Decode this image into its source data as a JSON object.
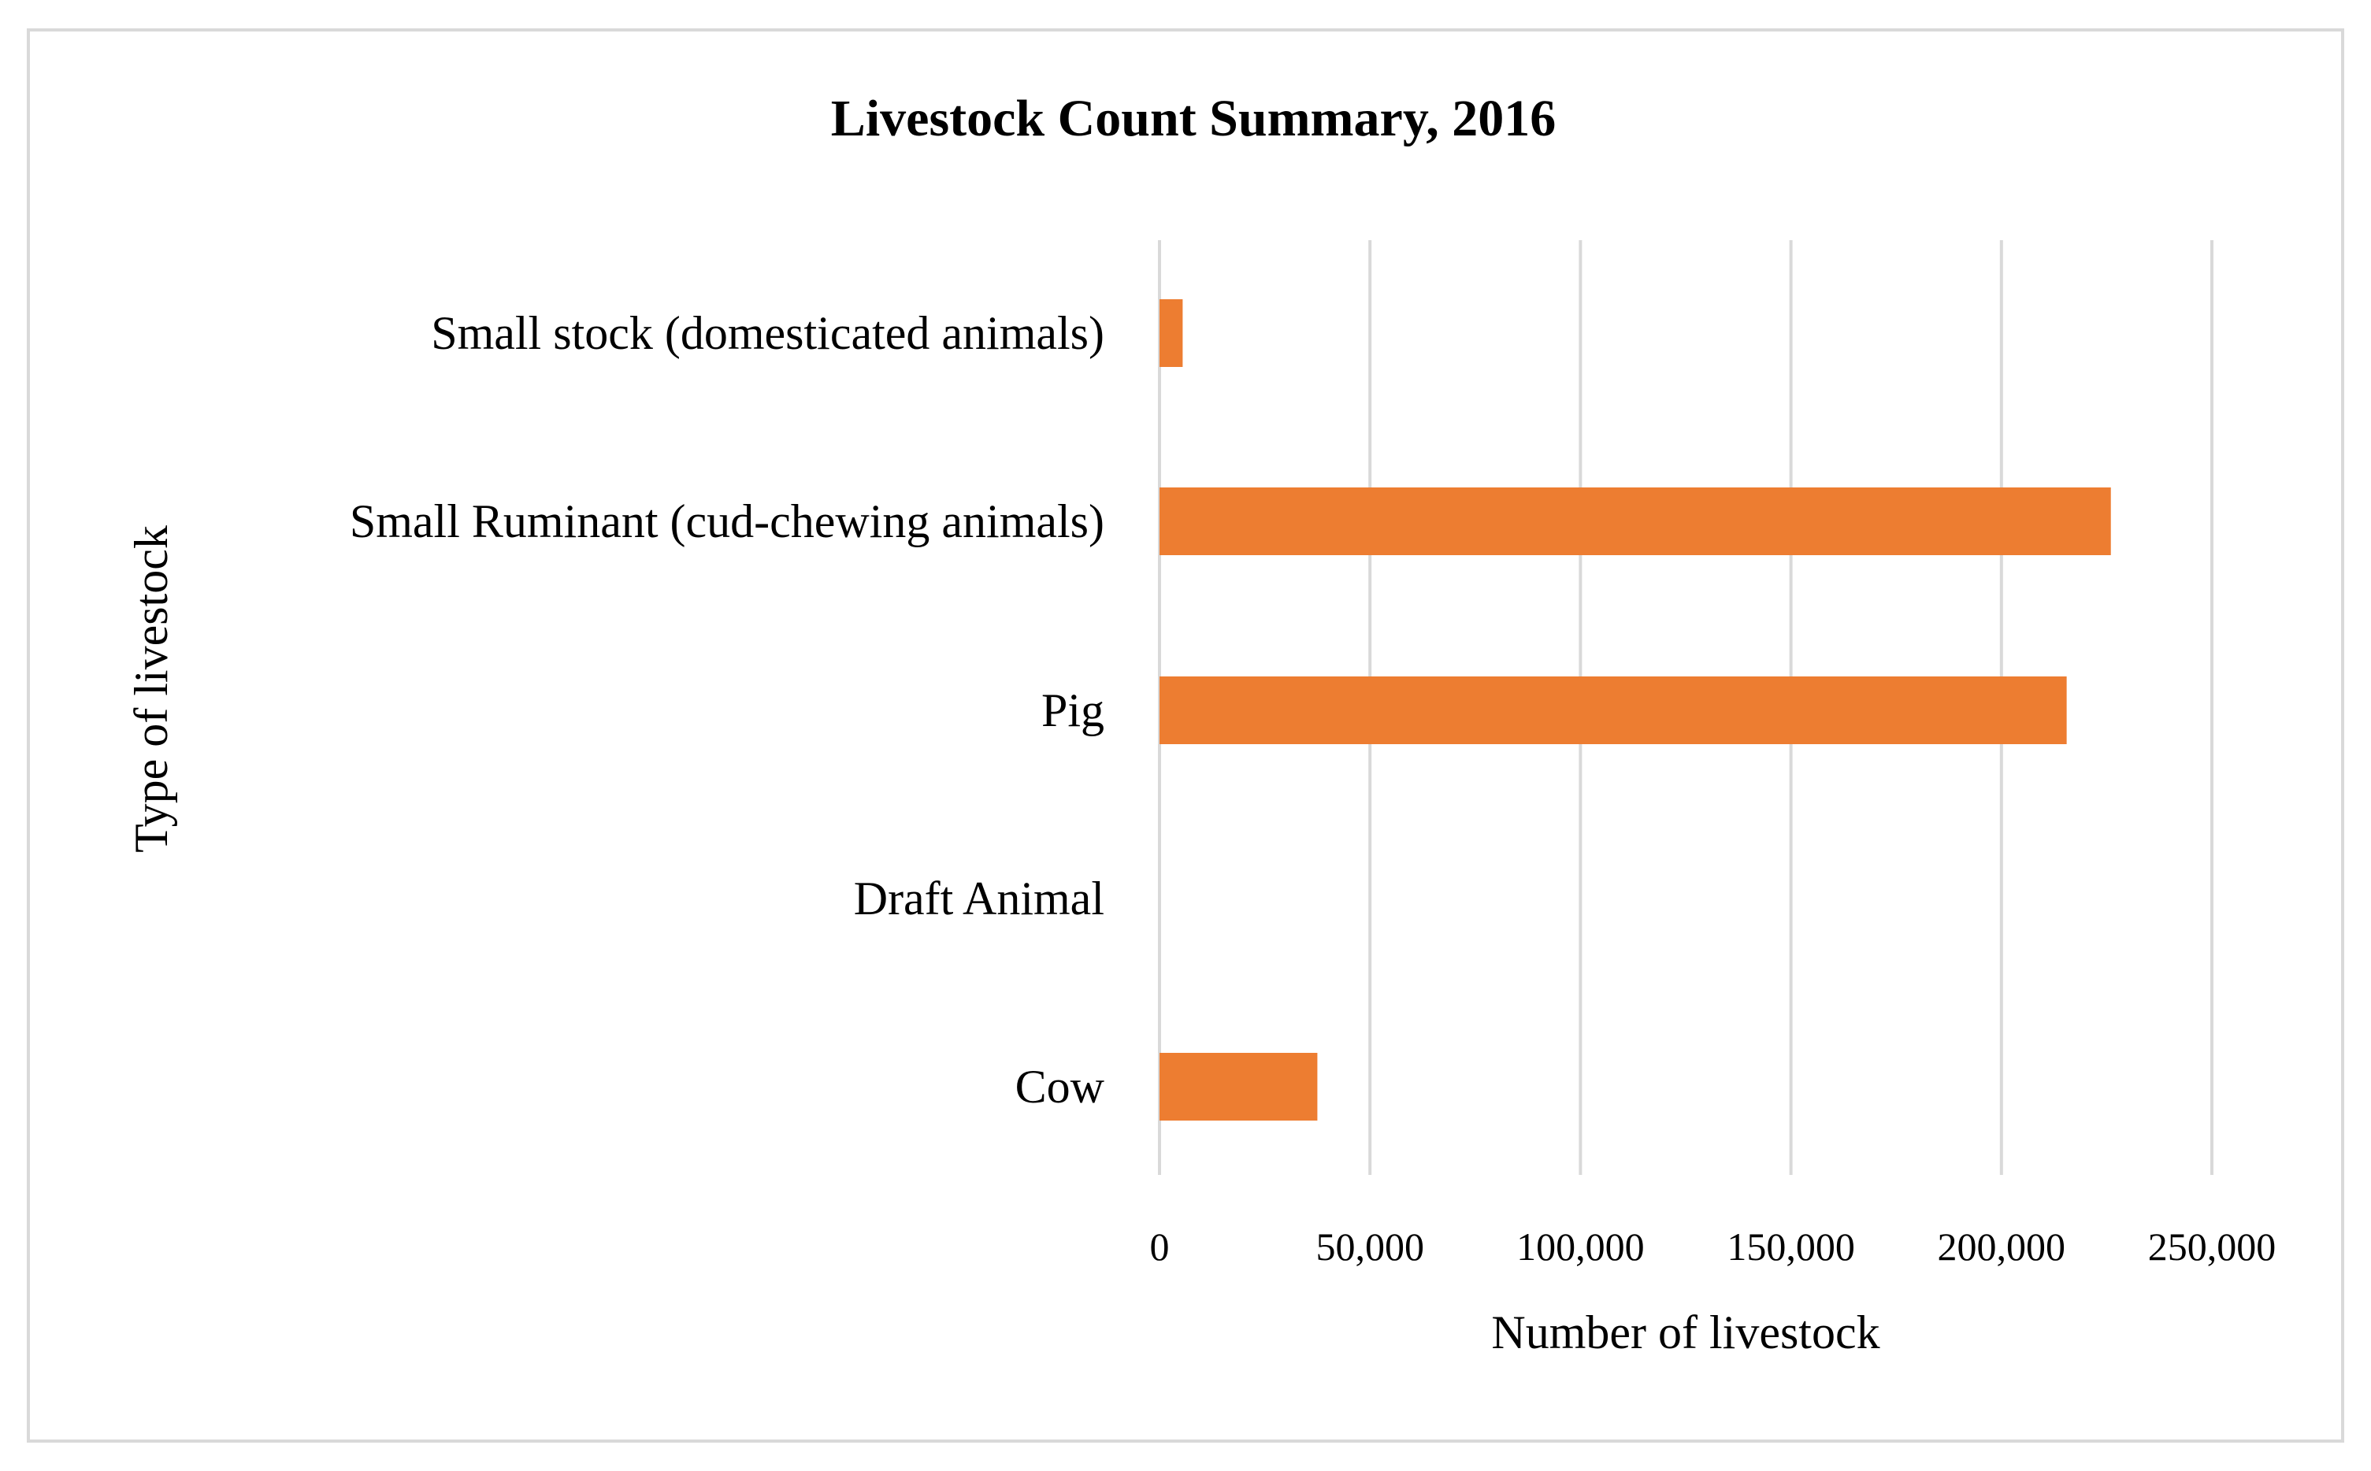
{
  "chart_data": {
    "type": "bar",
    "orientation": "horizontal",
    "title": "Livestock Count Summary, 2016",
    "xlabel": "Number of livestock",
    "ylabel": "Type of livestock",
    "categories": [
      "Small stock (domesticated animals)",
      "Small Ruminant (cud-chewing animals)",
      "Pig",
      "Draft Animal",
      "Cow"
    ],
    "values": [
      5500,
      226000,
      215500,
      0,
      37500
    ],
    "xlim": [
      0,
      250000
    ],
    "xticks": [
      0,
      50000,
      100000,
      150000,
      200000,
      250000
    ],
    "xtick_labels": [
      "0",
      "50,000",
      "100,000",
      "150,000",
      "200,000",
      "250,000"
    ],
    "grid": true,
    "legend": "none",
    "bar_color": "#ED7D31",
    "grid_color": "#D9D9D9"
  }
}
